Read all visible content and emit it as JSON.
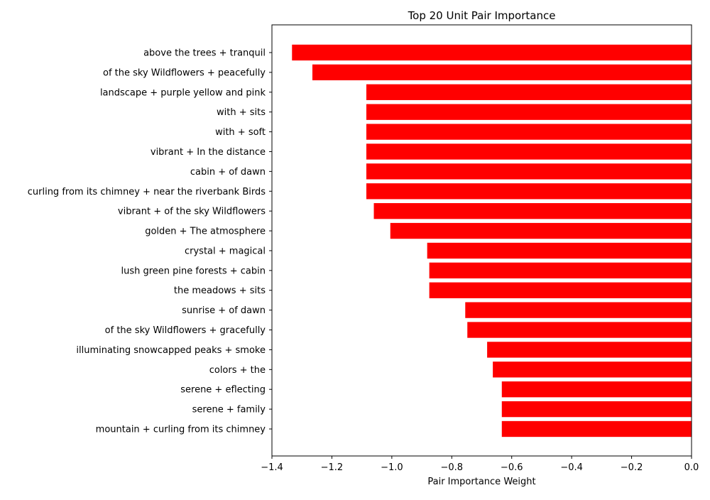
{
  "chart_data": {
    "type": "bar",
    "orientation": "horizontal",
    "title": "Top 20 Unit Pair Importance",
    "xlabel": "Pair Importance Weight",
    "ylabel": "",
    "xlim": [
      -1.4,
      0.0
    ],
    "xticks": [
      -1.4,
      -1.2,
      -1.0,
      -0.8,
      -0.6,
      -0.4,
      -0.2,
      0.0
    ],
    "xtick_labels": [
      "−1.4",
      "−1.2",
      "−1.0",
      "−0.8",
      "−0.6",
      "−0.4",
      "−0.2",
      "0.0"
    ],
    "grid": false,
    "bar_color": "#ff0000",
    "categories": [
      "above the trees + tranquil",
      "of the sky Wildflowers + peacefully",
      "landscape + purple yellow and pink",
      "with + sits",
      "with + soft",
      "vibrant + In the distance",
      "cabin + of dawn",
      "curling from its chimney + near the riverbank Birds",
      "vibrant + of the sky Wildflowers",
      "golden + The atmosphere",
      "crystal + magical",
      "lush green pine forests + cabin",
      "the meadows + sits",
      "sunrise + of dawn",
      "of the sky Wildflowers + gracefully",
      "illuminating snowcapped peaks + smoke",
      "colors + the",
      "serene + eflecting",
      "serene + family",
      "mountain + curling from its chimney"
    ],
    "values": [
      -1.333,
      -1.265,
      -1.085,
      -1.085,
      -1.085,
      -1.085,
      -1.085,
      -1.085,
      -1.06,
      -1.005,
      -0.882,
      -0.875,
      -0.875,
      -0.755,
      -0.748,
      -0.682,
      -0.663,
      -0.633,
      -0.633,
      -0.633
    ]
  }
}
